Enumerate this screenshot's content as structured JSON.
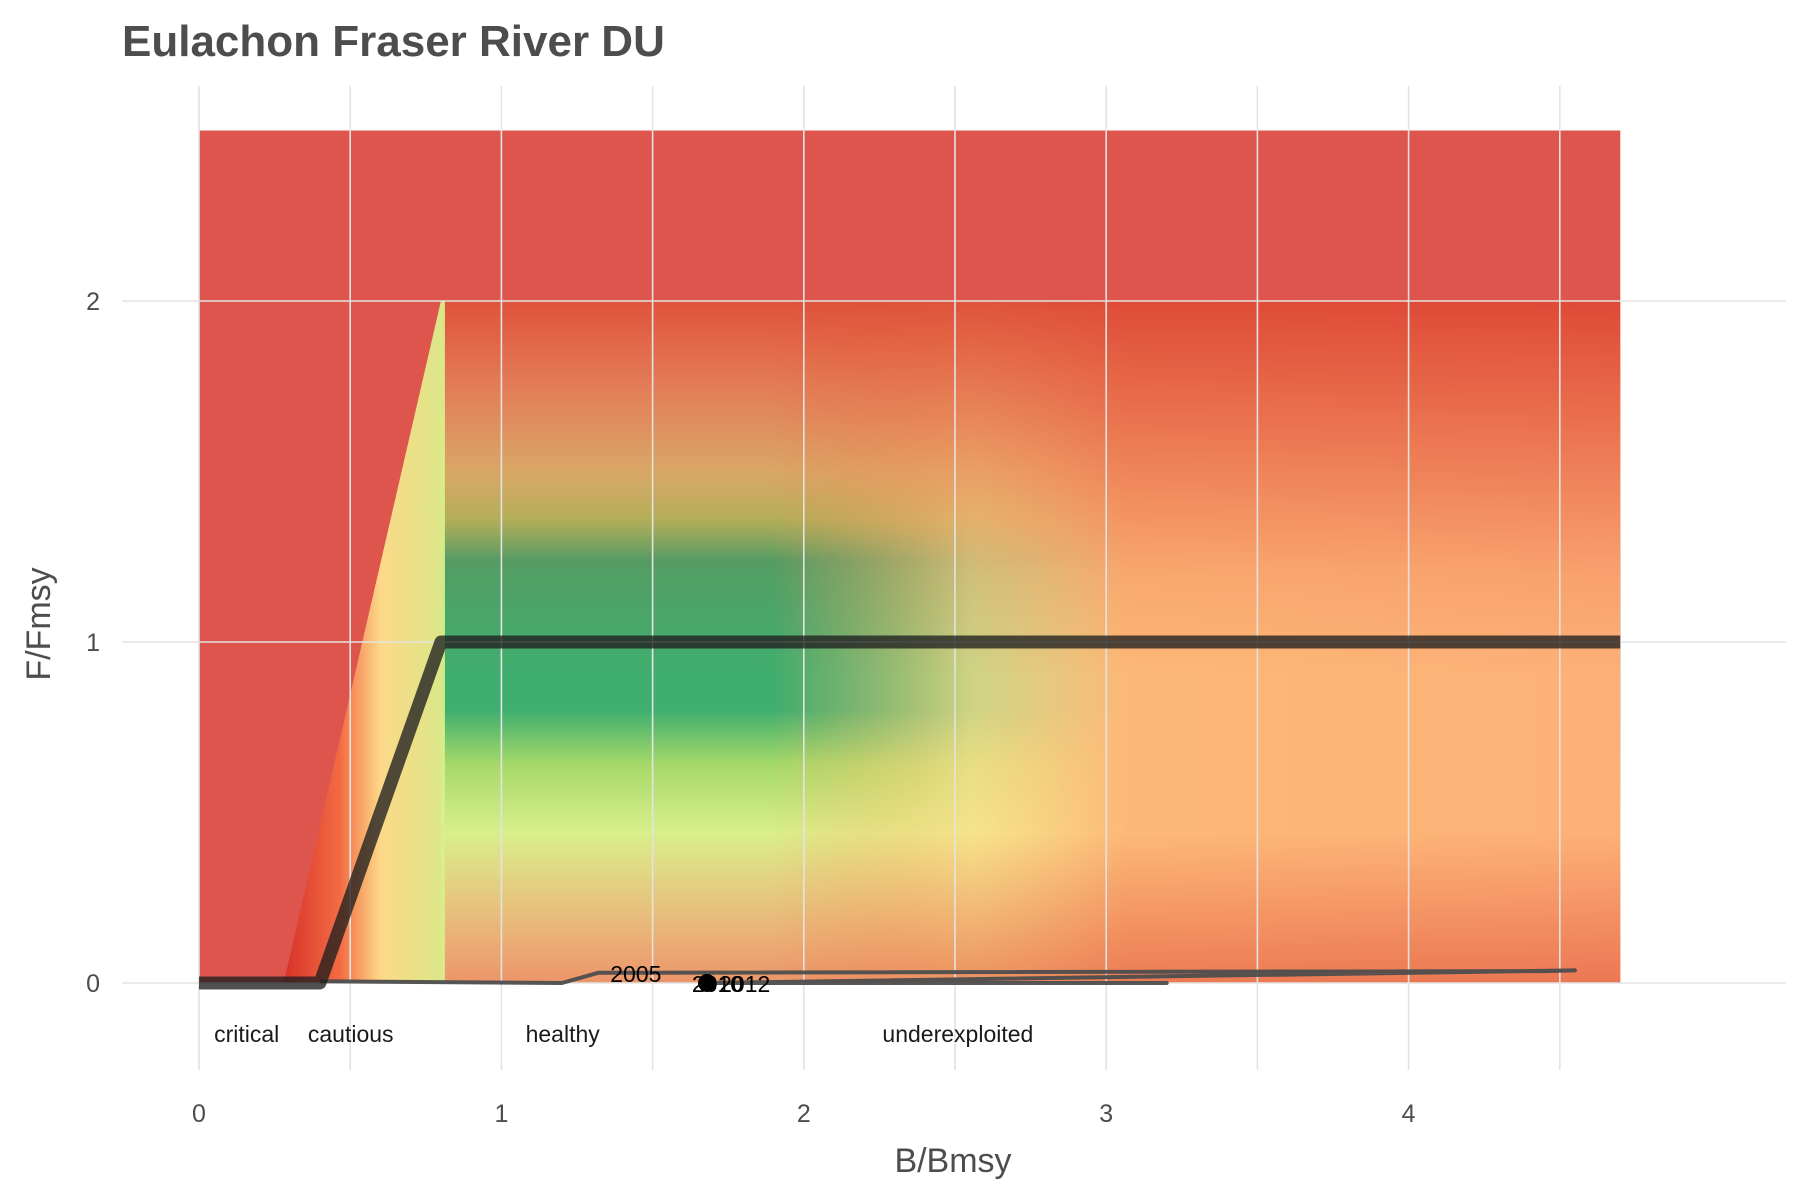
{
  "chart_data": {
    "type": "line",
    "title": "Eulachon Fraser River DU",
    "xlabel": "B/Bmsy",
    "ylabel": "F/Fmsy",
    "xlim": [
      -0.23,
      4.7
    ],
    "ylim": [
      -0.3,
      2.6
    ],
    "x_ticks": [
      0,
      1,
      2,
      3,
      4
    ],
    "y_ticks": [
      0,
      1,
      2
    ],
    "grid": true,
    "background": {
      "description": "status heat map",
      "x_range": [
        0,
        4.7
      ],
      "y_range": [
        0,
        2.5
      ],
      "colors": {
        "red": "#d73027",
        "orange": "#fc8d59",
        "light_orange": "#fdae61",
        "yellow": "#fee08b",
        "light_green": "#d9ef8b",
        "green": "#1a9850"
      }
    },
    "harvest_control_rule": {
      "x": [
        0,
        0.4,
        0.8,
        4.7
      ],
      "y": [
        0,
        0,
        1,
        1
      ],
      "color": "#1f1f1f"
    },
    "trajectory": {
      "x": [
        0.4,
        1.2,
        1.32,
        4.45,
        4.55,
        1.68,
        3.2,
        1.68
      ],
      "y": [
        0.005,
        0.0,
        0.03,
        0.035,
        0.037,
        0.0,
        0.0,
        0.0
      ],
      "color": "#4d4d4d"
    },
    "year_labels": [
      {
        "text": "2005",
        "x": 1.36,
        "y": 0.03
      },
      {
        "text": "2012",
        "x": 1.72,
        "y": 0.0
      },
      {
        "text": "2010",
        "x": 1.63,
        "y": 0.0
      }
    ],
    "current_point": {
      "x": 1.68,
      "y": 0.0,
      "color": "#000000"
    },
    "zone_labels": [
      {
        "text": "critical",
        "x": 0.05,
        "y": -0.15
      },
      {
        "text": "cautious",
        "x": 0.36,
        "y": -0.15
      },
      {
        "text": "healthy",
        "x": 1.08,
        "y": -0.15
      },
      {
        "text": "underexploited",
        "x": 2.26,
        "y": -0.15
      }
    ]
  }
}
